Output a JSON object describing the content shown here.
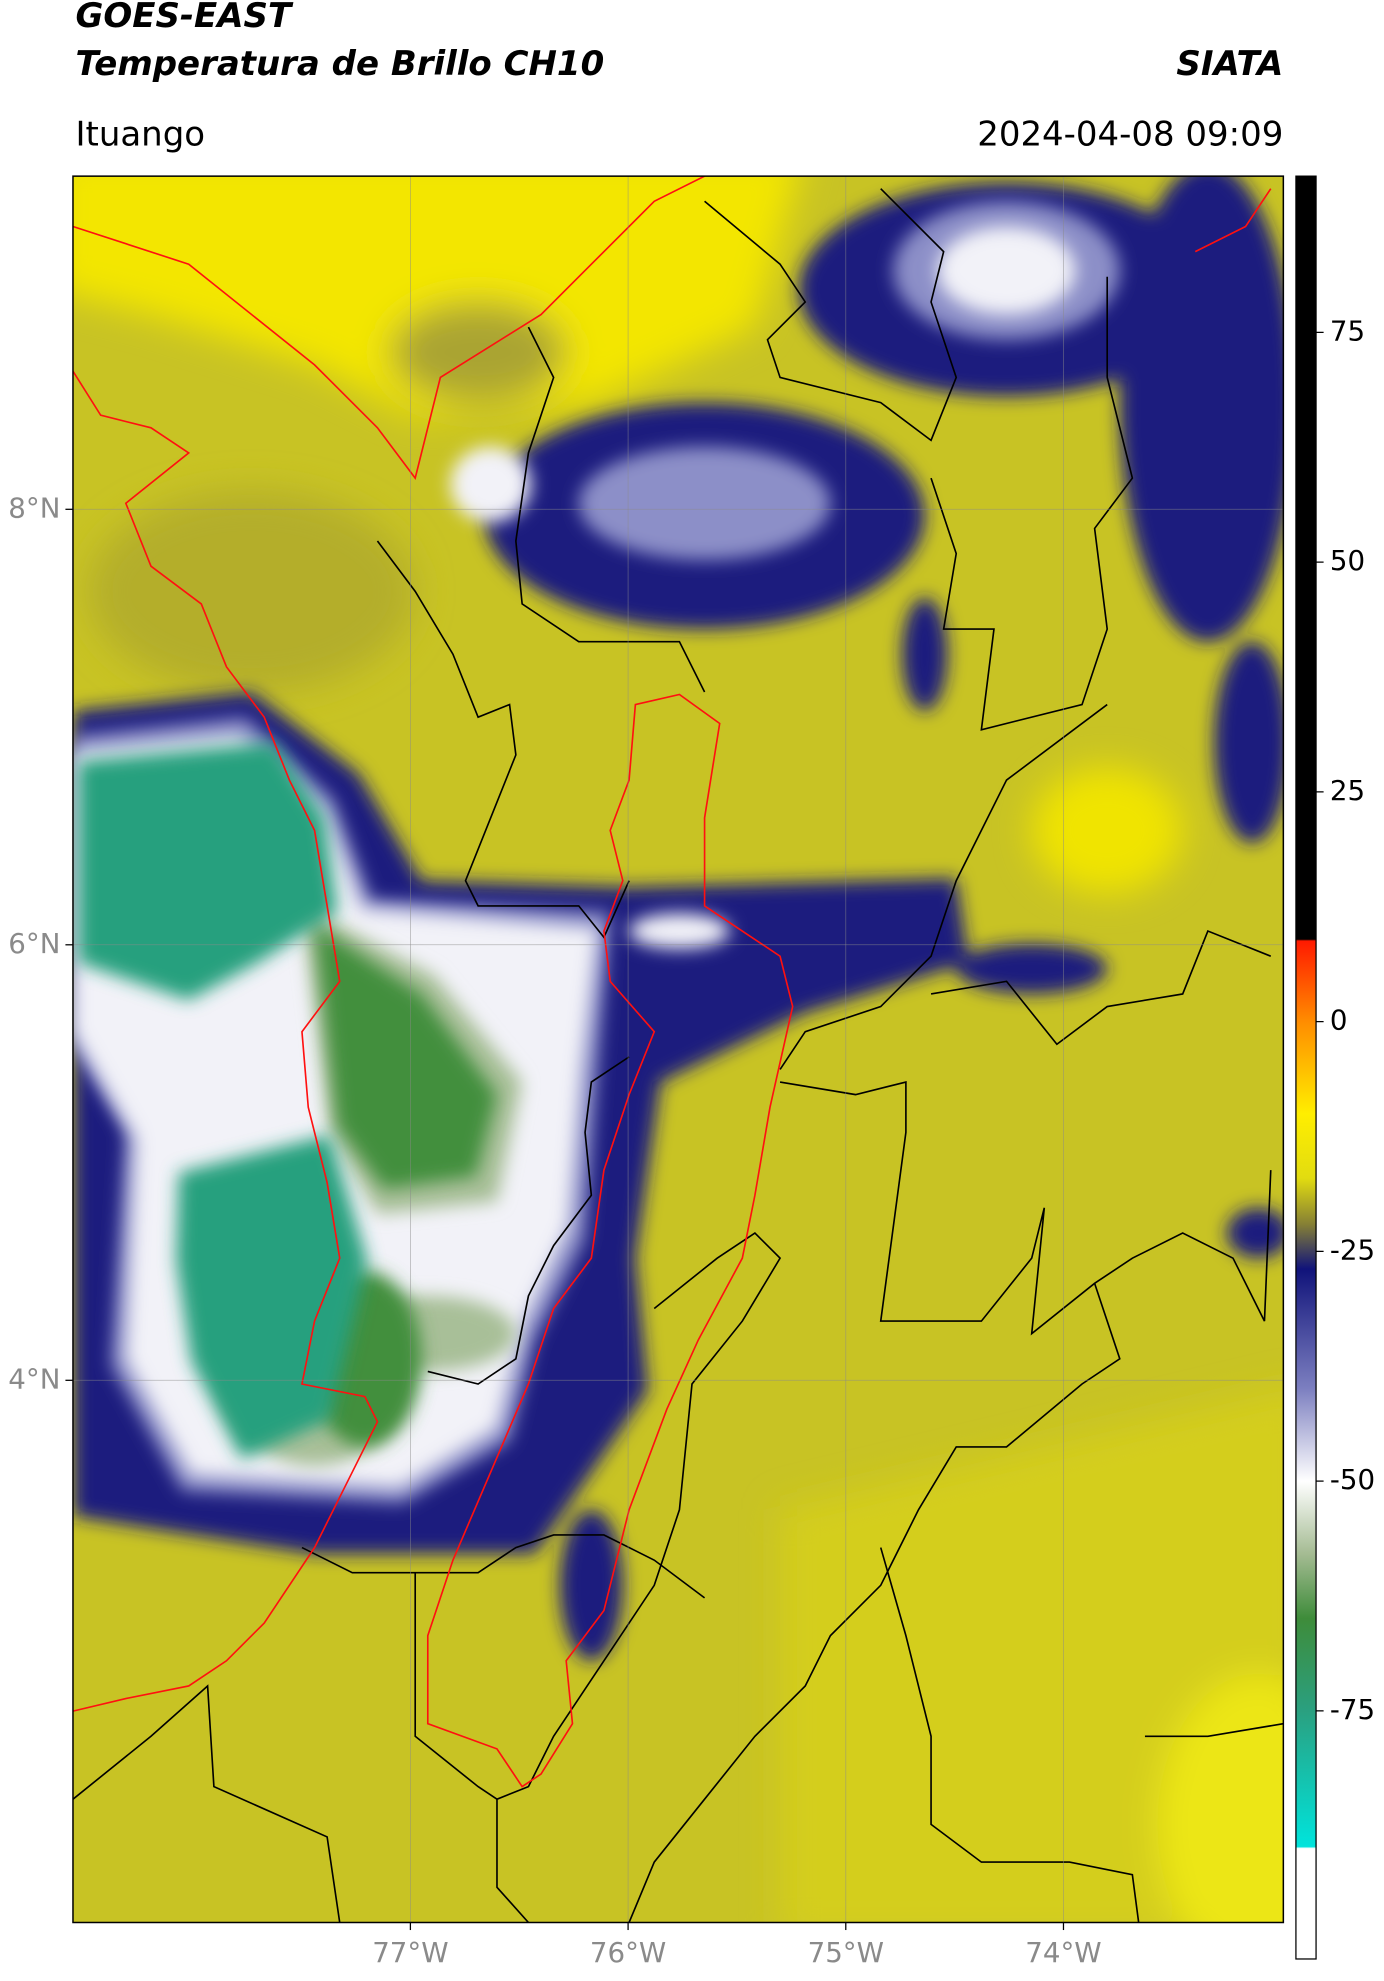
{
  "header": {
    "title": "GOES-EAST",
    "subtitle": "Temperatura de Brillo CH10",
    "brand": "SIATA",
    "location": "Ituango",
    "timestamp": "2024-04-08 09:09"
  },
  "chart_data": {
    "type": "map",
    "xlim": [
      -78.55,
      -72.99
    ],
    "ylim": [
      1.51,
      9.53
    ],
    "xticks": [
      {
        "value": -77,
        "label": "77°W"
      },
      {
        "value": -76,
        "label": "76°W"
      },
      {
        "value": -75,
        "label": "75°W"
      },
      {
        "value": -74,
        "label": "74°W"
      }
    ],
    "yticks": [
      {
        "value": 8,
        "label": "8°N"
      },
      {
        "value": 6,
        "label": "6°N"
      },
      {
        "value": 4,
        "label": "4°N"
      }
    ],
    "grid": true,
    "colorbar": {
      "ylim": [
        -102,
        92
      ],
      "yticks": [
        -75,
        -50,
        -25,
        0,
        25,
        50,
        75
      ]
    }
  }
}
